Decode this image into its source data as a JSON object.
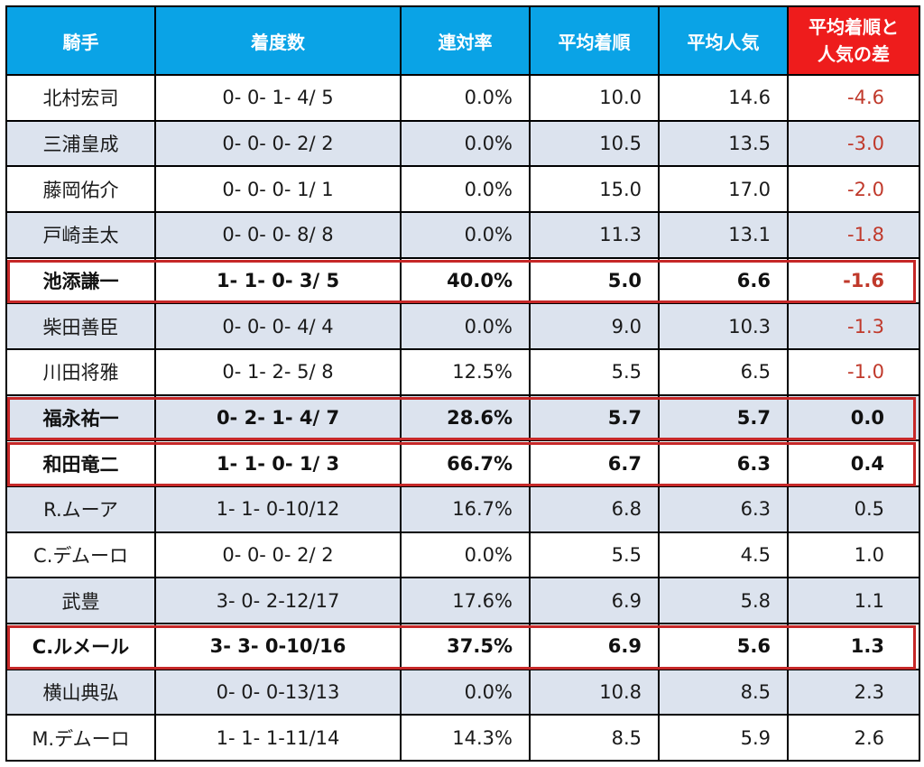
{
  "headers": {
    "jockey": "騎手",
    "record": "着度数",
    "rate": "連対率",
    "avg_finish": "平均着順",
    "avg_pop": "平均人気",
    "diff_line1": "平均着順と",
    "diff_line2": "人気の差"
  },
  "rows": [
    {
      "jockey": "北村宏司",
      "record": "0- 0- 1- 4/ 5",
      "rate": "0.0%",
      "avg_finish": "10.0",
      "avg_pop": "14.6",
      "diff": "-4.6"
    },
    {
      "jockey": "三浦皇成",
      "record": "0- 0- 0- 2/ 2",
      "rate": "0.0%",
      "avg_finish": "10.5",
      "avg_pop": "13.5",
      "diff": "-3.0"
    },
    {
      "jockey": "藤岡佑介",
      "record": "0- 0- 0- 1/ 1",
      "rate": "0.0%",
      "avg_finish": "15.0",
      "avg_pop": "17.0",
      "diff": "-2.0"
    },
    {
      "jockey": "戸崎圭太",
      "record": "0- 0- 0- 8/ 8",
      "rate": "0.0%",
      "avg_finish": "11.3",
      "avg_pop": "13.1",
      "diff": "-1.8"
    },
    {
      "jockey": "池添謙一",
      "record": "1- 1- 0- 3/ 5",
      "rate": "40.0%",
      "avg_finish": "5.0",
      "avg_pop": "6.6",
      "diff": "-1.6"
    },
    {
      "jockey": "柴田善臣",
      "record": "0- 0- 0- 4/ 4",
      "rate": "0.0%",
      "avg_finish": "9.0",
      "avg_pop": "10.3",
      "diff": "-1.3"
    },
    {
      "jockey": "川田将雅",
      "record": "0- 1- 2- 5/ 8",
      "rate": "12.5%",
      "avg_finish": "5.5",
      "avg_pop": "6.5",
      "diff": "-1.0"
    },
    {
      "jockey": "福永祐一",
      "record": "0- 2- 1- 4/ 7",
      "rate": "28.6%",
      "avg_finish": "5.7",
      "avg_pop": "5.7",
      "diff": "0.0"
    },
    {
      "jockey": "和田竜二",
      "record": "1- 1- 0- 1/ 3",
      "rate": "66.7%",
      "avg_finish": "6.7",
      "avg_pop": "6.3",
      "diff": "0.4"
    },
    {
      "jockey": "R.ムーア",
      "record": "1- 1- 0-10/12",
      "rate": "16.7%",
      "avg_finish": "6.8",
      "avg_pop": "6.3",
      "diff": "0.5"
    },
    {
      "jockey": "C.デムーロ",
      "record": "0- 0- 0- 2/ 2",
      "rate": "0.0%",
      "avg_finish": "5.5",
      "avg_pop": "4.5",
      "diff": "1.0"
    },
    {
      "jockey": "武豊",
      "record": "3- 0- 2-12/17",
      "rate": "17.6%",
      "avg_finish": "6.9",
      "avg_pop": "5.8",
      "diff": "1.1"
    },
    {
      "jockey": "C.ルメール",
      "record": "3- 3- 0-10/16",
      "rate": "37.5%",
      "avg_finish": "6.9",
      "avg_pop": "5.6",
      "diff": "1.3"
    },
    {
      "jockey": "横山典弘",
      "record": "0- 0- 0-13/13",
      "rate": "0.0%",
      "avg_finish": "10.8",
      "avg_pop": "8.5",
      "diff": "2.3"
    },
    {
      "jockey": "M.デムーロ",
      "record": "1- 1- 1-11/14",
      "rate": "14.3%",
      "avg_finish": "8.5",
      "avg_pop": "5.9",
      "diff": "2.6"
    }
  ],
  "highlighted_rows": [
    "池添謙一",
    "福永祐一",
    "和田竜二",
    "C.ルメール"
  ],
  "colors": {
    "header_blue": "#0aa3e6",
    "header_red": "#ee1c1c",
    "row_alt": "#dce3ee",
    "negative_text": "#c0392b",
    "highlight_border": "#c62828"
  }
}
